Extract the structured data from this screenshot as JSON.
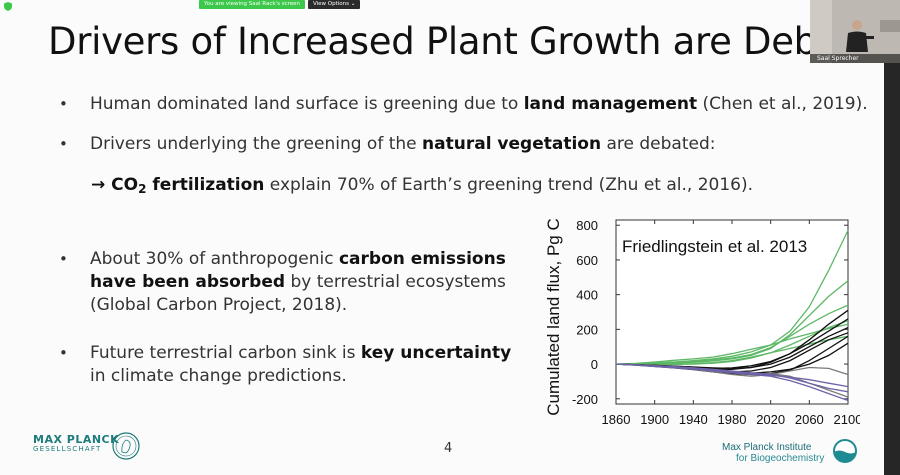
{
  "screen_share": {
    "banner": "You are viewing Saal Rack's screen",
    "view_options": "View Options ⌄"
  },
  "video": {
    "participant_name": "Saal Sprecher"
  },
  "slide": {
    "title": "Drivers of Increased Plant Growth are Debated",
    "bullets": [
      {
        "pre": "Human dominated land surface is greening due to ",
        "bold": "land management",
        "post": " (Chen et al., 2019)."
      },
      {
        "pre": "Drivers underlying the greening of the ",
        "bold": "natural vegetation",
        "post": " are debated:"
      }
    ],
    "sub_item": {
      "arrow": "→ ",
      "bold_pre": "CO",
      "bold_sub": "2",
      "bold_post": " fertilization",
      "post": " explain 70% of Earth’s greening trend (Zhu et al., 2016)."
    },
    "bullet3": {
      "pre": "About 30% of anthropogenic ",
      "bold1": "carbon emissions",
      "bold2": "have been absorbed",
      "post2": " by terrestrial ecosystems",
      "line3": "(Global Carbon Project, 2018)."
    },
    "bullet4": {
      "pre": "Future terrestrial carbon sink is ",
      "bold": "key uncertainty",
      "line2": "in climate change predictions."
    },
    "page_number": "4",
    "logo_left": {
      "line1": "MAX PLANCK",
      "line2": "GESELLSCHAFT"
    },
    "logo_right": {
      "line1": "Max Planck Institute",
      "line2": "for Biogeochemistry"
    }
  },
  "chart_data": {
    "type": "line",
    "annotation": "Friedlingstein et al. 2013",
    "ylabel": "Cumulated land flux, Pg C",
    "xlabel": "",
    "xlim": [
      1860,
      2100
    ],
    "ylim": [
      -230,
      830
    ],
    "x_ticks": [
      1860,
      1900,
      1940,
      1980,
      2020,
      2060,
      2100
    ],
    "y_ticks": [
      800,
      600,
      400,
      200,
      0,
      -200
    ],
    "colors": {
      "green": "#5db866",
      "black": "#111111",
      "purple": "#6e63a8",
      "gray": "#7a7a7a"
    },
    "x": [
      1860,
      1880,
      1900,
      1920,
      1940,
      1960,
      1980,
      2000,
      2020,
      2040,
      2060,
      2080,
      2100
    ],
    "series": [
      {
        "color": "green",
        "values": [
          0,
          2,
          6,
          12,
          20,
          30,
          45,
          70,
          110,
          190,
          330,
          540,
          770
        ]
      },
      {
        "color": "green",
        "values": [
          0,
          0,
          2,
          5,
          10,
          18,
          30,
          50,
          90,
          170,
          280,
          390,
          480
        ]
      },
      {
        "color": "green",
        "values": [
          0,
          2,
          6,
          10,
          16,
          24,
          35,
          55,
          95,
          160,
          230,
          290,
          340
        ]
      },
      {
        "color": "green",
        "values": [
          0,
          -2,
          -3,
          -2,
          0,
          5,
          15,
          35,
          65,
          110,
          160,
          210,
          250
        ]
      },
      {
        "color": "green",
        "values": [
          0,
          4,
          12,
          22,
          30,
          40,
          60,
          85,
          110,
          145,
          175,
          205,
          230
        ]
      },
      {
        "color": "green",
        "values": [
          0,
          -1,
          -2,
          -1,
          2,
          8,
          20,
          40,
          65,
          90,
          115,
          140,
          160
        ]
      },
      {
        "color": "black",
        "values": [
          0,
          -5,
          -10,
          -15,
          -22,
          -30,
          -30,
          -20,
          10,
          60,
          140,
          230,
          310
        ]
      },
      {
        "color": "black",
        "values": [
          0,
          -4,
          -8,
          -12,
          -18,
          -25,
          -22,
          -10,
          15,
          60,
          120,
          190,
          260
        ]
      },
      {
        "color": "black",
        "values": [
          0,
          -3,
          -7,
          -12,
          -17,
          -22,
          -25,
          -20,
          0,
          40,
          100,
          160,
          210
        ]
      },
      {
        "color": "black",
        "values": [
          0,
          -5,
          -12,
          -18,
          -25,
          -35,
          -45,
          -40,
          -20,
          20,
          80,
          140,
          180
        ]
      },
      {
        "color": "black",
        "values": [
          0,
          -4,
          -10,
          -16,
          -24,
          -35,
          -48,
          -52,
          -45,
          -30,
          0,
          50,
          120
        ]
      },
      {
        "color": "black",
        "values": [
          0,
          -6,
          -14,
          -22,
          -32,
          -45,
          -55,
          -60,
          -55,
          -35,
          20,
          90,
          160
        ]
      },
      {
        "color": "gray",
        "values": [
          0,
          -5,
          -12,
          -20,
          -30,
          -45,
          -60,
          -70,
          -60,
          -40,
          -20,
          -25,
          -60
        ]
      },
      {
        "color": "gray",
        "values": [
          0,
          -4,
          -9,
          -15,
          -22,
          -32,
          -45,
          -55,
          -55,
          -70,
          -110,
          -150,
          -190
        ]
      },
      {
        "color": "purple",
        "values": [
          0,
          -6,
          -14,
          -22,
          -30,
          -40,
          -50,
          -60,
          -70,
          -95,
          -130,
          -170,
          -210
        ]
      },
      {
        "color": "purple",
        "values": [
          0,
          -5,
          -11,
          -18,
          -25,
          -35,
          -45,
          -55,
          -65,
          -75,
          -90,
          -110,
          -130
        ]
      },
      {
        "color": "purple",
        "values": [
          0,
          -4,
          -9,
          -15,
          -22,
          -30,
          -40,
          -50,
          -58,
          -80,
          -110,
          -140,
          -160
        ]
      }
    ]
  }
}
